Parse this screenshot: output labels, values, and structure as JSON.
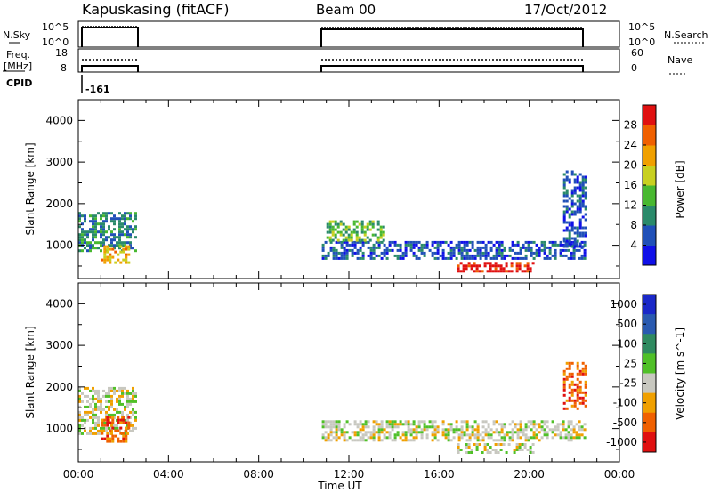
{
  "header": {
    "station": "Kapuskasing (fitACF)",
    "beam": "Beam 00",
    "date": "17/Oct/2012"
  },
  "noise_panel": {
    "left_label": "N.Sky",
    "right_label": "N.Search",
    "left_ticks": [
      "10^5",
      "10^0"
    ],
    "right_ticks": [
      "10^5",
      "10^0"
    ]
  },
  "freq_panel": {
    "left_label_1": "Freq.",
    "left_label_2": "[MHz]",
    "right_label": "Nave",
    "left_ticks": [
      "18",
      "8"
    ],
    "right_ticks": [
      "60",
      "0"
    ]
  },
  "cpid_panel": {
    "label": "CPID",
    "value": "-161"
  },
  "time_axis": {
    "label": "Time UT",
    "ticks": [
      "00:00",
      "04:00",
      "08:00",
      "12:00",
      "16:00",
      "20:00",
      "00:00"
    ]
  },
  "chart_data": [
    {
      "type": "heatmap",
      "name": "power",
      "ylabel": "Slant Range [km]",
      "yticks": [
        "1000",
        "2000",
        "3000",
        "4000"
      ],
      "ylim": [
        200,
        4500
      ],
      "xlim_hours": [
        0,
        24
      ],
      "colorbar": {
        "label": "Power [dB]",
        "ticks": [
          "4",
          "8",
          "12",
          "16",
          "20",
          "24",
          "28"
        ],
        "colors": [
          "#1010e8",
          "#2050b8",
          "#2a8a6a",
          "#48b830",
          "#c8d020",
          "#f0a000",
          "#f06000",
          "#e01010"
        ]
      },
      "regions": [
        {
          "t": [
            0.0,
            2.5
          ],
          "r": [
            900,
            1800
          ],
          "v": 2
        },
        {
          "t": [
            1.0,
            2.3
          ],
          "r": [
            600,
            1000
          ],
          "v": 5
        },
        {
          "t": [
            10.8,
            22.5
          ],
          "r": [
            700,
            1100
          ],
          "v": 1
        },
        {
          "t": [
            11.0,
            13.5
          ],
          "r": [
            1100,
            1600
          ],
          "v": 3
        },
        {
          "t": [
            16.8,
            20.2
          ],
          "r": [
            400,
            600
          ],
          "v": 7
        },
        {
          "t": [
            21.5,
            22.5
          ],
          "r": [
            1000,
            2800
          ],
          "v": 1
        }
      ]
    },
    {
      "type": "heatmap",
      "name": "velocity",
      "ylabel": "Slant Range [km]",
      "yticks": [
        "1000",
        "2000",
        "3000",
        "4000"
      ],
      "ylim": [
        200,
        4500
      ],
      "xlim_hours": [
        0,
        24
      ],
      "colorbar": {
        "label": "Velocity [m s^-1]",
        "ticks": [
          "1000",
          "500",
          "100",
          "25",
          "-25",
          "-100",
          "-500",
          "-1000"
        ],
        "colors": [
          "#1a28c8",
          "#2a5ab0",
          "#2f8a60",
          "#50c028",
          "#c8c8c0",
          "#f0a000",
          "#f06000",
          "#e01010"
        ]
      },
      "regions": [
        {
          "t": [
            0.0,
            2.5
          ],
          "r": [
            900,
            2000
          ],
          "v": 4
        },
        {
          "t": [
            1.0,
            2.3
          ],
          "r": [
            700,
            1300
          ],
          "v": 6
        },
        {
          "t": [
            10.8,
            22.5
          ],
          "r": [
            700,
            1200
          ],
          "v": 4
        },
        {
          "t": [
            16.8,
            20.2
          ],
          "r": [
            400,
            650
          ],
          "v": 4
        },
        {
          "t": [
            21.5,
            22.5
          ],
          "r": [
            1500,
            2600
          ],
          "v": 6
        }
      ]
    }
  ]
}
